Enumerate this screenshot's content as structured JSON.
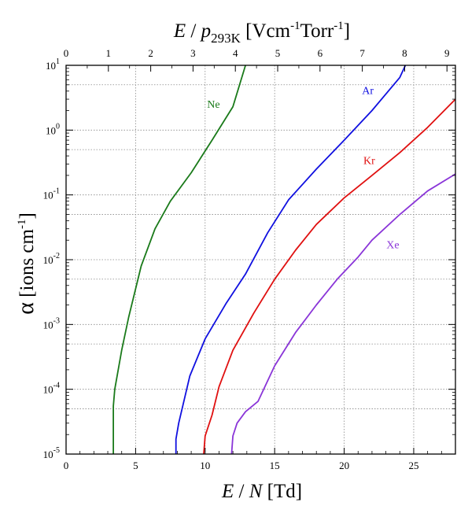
{
  "chart_data": {
    "type": "line",
    "xlabel": {
      "italic": "E",
      "rest": " / ",
      "italic2": "N",
      "unit": " [Td]"
    },
    "x2label": {
      "italic": "E",
      "rest": " / ",
      "italic2": "p",
      "sub": "293K",
      "unit": " [Vcm",
      "sup1": "-1",
      "unit2": "Torr",
      "sup2": "-1",
      "close": "]"
    },
    "ylabel": {
      "greek": "α",
      "unit": " [ions cm",
      "sup": "-1",
      "close": "]"
    },
    "xlim": [
      0,
      28
    ],
    "x2lim": [
      0,
      9.2
    ],
    "ylim": [
      1e-05,
      10
    ],
    "yscale": "log",
    "grid": true,
    "x_ticks": [
      "0",
      "5",
      "10",
      "15",
      "20",
      "25"
    ],
    "x2_ticks": [
      "0",
      "1",
      "2",
      "3",
      "4",
      "5",
      "6",
      "7",
      "8",
      "9"
    ],
    "y_ticks": [
      {
        "base": "10",
        "exp": "1"
      },
      {
        "base": "10",
        "exp": "0"
      },
      {
        "base": "10",
        "exp": "-1"
      },
      {
        "base": "10",
        "exp": "-2"
      },
      {
        "base": "10",
        "exp": "-3"
      },
      {
        "base": "10",
        "exp": "-4"
      },
      {
        "base": "10",
        "exp": "-5"
      }
    ],
    "series": [
      {
        "name": "Ne",
        "color": "#1a7a1a",
        "x": [
          3.4,
          3.4,
          3.5,
          4.0,
          4.5,
          5.4,
          6.4,
          7.5,
          9.0,
          10.5,
          12.0,
          12.9
        ],
        "y": [
          1e-05,
          5.5e-05,
          0.0001,
          0.0004,
          0.0013,
          0.008,
          0.03,
          0.08,
          0.22,
          0.7,
          2.3,
          10
        ]
      },
      {
        "name": "Ar",
        "color": "#1010e0",
        "x": [
          7.9,
          7.9,
          8.1,
          8.9,
          10.0,
          11.5,
          12.9,
          14.5,
          16.0,
          18.0,
          20.0,
          22.0,
          24.0,
          24.4
        ],
        "y": [
          1e-05,
          1.7e-05,
          3e-05,
          0.00016,
          0.0006,
          0.0021,
          0.006,
          0.026,
          0.084,
          0.25,
          0.7,
          2.0,
          6.5,
          10
        ]
      },
      {
        "name": "Kr",
        "color": "#e01010",
        "x": [
          9.9,
          10.0,
          10.5,
          11.0,
          12.0,
          13.5,
          15.0,
          16.5,
          18.0,
          20.0,
          22.0,
          24.0,
          26.0,
          28.0
        ],
        "y": [
          1e-05,
          1.9e-05,
          4e-05,
          0.00011,
          0.0004,
          0.0015,
          0.005,
          0.014,
          0.035,
          0.09,
          0.2,
          0.45,
          1.1,
          3.0
        ]
      },
      {
        "name": "Xe",
        "color": "#8a35d8",
        "x": [
          11.9,
          12.0,
          12.3,
          12.9,
          13.8,
          15.0,
          16.5,
          18.0,
          19.5,
          21.0,
          22.0,
          24.0,
          26.0,
          28.0
        ],
        "y": [
          1e-05,
          1.9e-05,
          3e-05,
          4.5e-05,
          6.5e-05,
          0.00023,
          0.00075,
          0.002,
          0.005,
          0.011,
          0.02,
          0.05,
          0.115,
          0.21
        ]
      }
    ],
    "annotations": [
      {
        "text": "Ne",
        "x": 10.6,
        "y": 2.2,
        "color": "#1a7a1a"
      },
      {
        "text": "Ar",
        "x": 21.7,
        "y": 3.6,
        "color": "#1010e0"
      },
      {
        "text": "Kr",
        "x": 21.8,
        "y": 0.3,
        "color": "#e01010"
      },
      {
        "text": "Xe",
        "x": 23.5,
        "y": 0.015,
        "color": "#8a35d8"
      }
    ]
  }
}
